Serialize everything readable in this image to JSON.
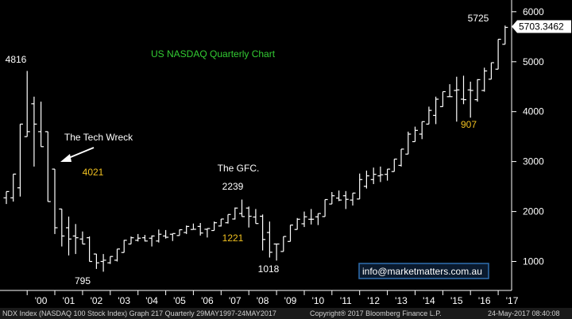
{
  "chart_data": {
    "type": "ohlc",
    "title": "US NASDAQ Quarterly Chart",
    "last_price_label": "5703.3462",
    "y_ticks": [
      1000,
      2000,
      3000,
      4000,
      5000,
      6000
    ],
    "ylim": [
      420,
      6220
    ],
    "x_tick_labels": [
      "'00",
      "'01",
      "'02",
      "'03",
      "'04",
      "'05",
      "'06",
      "'07",
      "'08",
      "'09",
      "'10",
      "'11",
      "'12",
      "'13",
      "'14",
      "'15",
      "'16",
      "'17"
    ],
    "bars": [
      {
        "q": "1999Q2",
        "h": 2400,
        "l": 2150
      },
      {
        "q": "1999Q3",
        "h": 2750,
        "l": 2200
      },
      {
        "q": "1999Q4",
        "h": 3750,
        "l": 2300
      },
      {
        "q": "2000Q1",
        "h": 4816,
        "l": 3500
      },
      {
        "q": "2000Q2",
        "h": 4300,
        "l": 2900
      },
      {
        "q": "2000Q3",
        "h": 4200,
        "l": 3300
      },
      {
        "q": "2000Q4",
        "h": 3600,
        "l": 2200
      },
      {
        "q": "2001Q1",
        "h": 2850,
        "l": 1550
      },
      {
        "q": "2001Q2",
        "h": 2050,
        "l": 1300
      },
      {
        "q": "2001Q3",
        "h": 1900,
        "l": 1120
      },
      {
        "q": "2001Q4",
        "h": 1750,
        "l": 1150
      },
      {
        "q": "2002Q1",
        "h": 1600,
        "l": 1350
      },
      {
        "q": "2002Q2",
        "h": 1500,
        "l": 1000
      },
      {
        "q": "2002Q3",
        "h": 1150,
        "l": 850
      },
      {
        "q": "2002Q4",
        "h": 1150,
        "l": 795
      },
      {
        "q": "2003Q1",
        "h": 1100,
        "l": 950
      },
      {
        "q": "2003Q2",
        "h": 1250,
        "l": 1000
      },
      {
        "q": "2003Q3",
        "h": 1430,
        "l": 1180
      },
      {
        "q": "2003Q4",
        "h": 1500,
        "l": 1350
      },
      {
        "q": "2004Q1",
        "h": 1550,
        "l": 1400
      },
      {
        "q": "2004Q2",
        "h": 1530,
        "l": 1400
      },
      {
        "q": "2004Q3",
        "h": 1520,
        "l": 1300
      },
      {
        "q": "2004Q4",
        "h": 1640,
        "l": 1380
      },
      {
        "q": "2005Q1",
        "h": 1630,
        "l": 1460
      },
      {
        "q": "2005Q2",
        "h": 1560,
        "l": 1410
      },
      {
        "q": "2005Q3",
        "h": 1640,
        "l": 1520
      },
      {
        "q": "2005Q4",
        "h": 1720,
        "l": 1550
      },
      {
        "q": "2006Q1",
        "h": 1760,
        "l": 1640
      },
      {
        "q": "2006Q2",
        "h": 1770,
        "l": 1520
      },
      {
        "q": "2006Q3",
        "h": 1660,
        "l": 1480
      },
      {
        "q": "2006Q4",
        "h": 1800,
        "l": 1620
      },
      {
        "q": "2007Q1",
        "h": 1850,
        "l": 1700
      },
      {
        "q": "2007Q2",
        "h": 1940,
        "l": 1760
      },
      {
        "q": "2007Q3",
        "h": 2080,
        "l": 1840
      },
      {
        "q": "2007Q4",
        "h": 2239,
        "l": 1900
      },
      {
        "q": "2008Q1",
        "h": 2100,
        "l": 1680
      },
      {
        "q": "2008Q2",
        "h": 2050,
        "l": 1760
      },
      {
        "q": "2008Q3",
        "h": 1940,
        "l": 1221
      },
      {
        "q": "2008Q4",
        "h": 1800,
        "l": 1080
      },
      {
        "q": "2009Q1",
        "h": 1350,
        "l": 1018
      },
      {
        "q": "2009Q2",
        "h": 1500,
        "l": 1200
      },
      {
        "q": "2009Q3",
        "h": 1730,
        "l": 1400
      },
      {
        "q": "2009Q4",
        "h": 1870,
        "l": 1640
      },
      {
        "q": "2010Q1",
        "h": 2000,
        "l": 1690
      },
      {
        "q": "2010Q2",
        "h": 2050,
        "l": 1740
      },
      {
        "q": "2010Q3",
        "h": 1960,
        "l": 1730
      },
      {
        "q": "2010Q4",
        "h": 2240,
        "l": 1900
      },
      {
        "q": "2011Q1",
        "h": 2390,
        "l": 2150
      },
      {
        "q": "2011Q2",
        "h": 2420,
        "l": 2210
      },
      {
        "q": "2011Q3",
        "h": 2410,
        "l": 2050
      },
      {
        "q": "2011Q4",
        "h": 2370,
        "l": 2120
      },
      {
        "q": "2012Q1",
        "h": 2760,
        "l": 2250
      },
      {
        "q": "2012Q2",
        "h": 2820,
        "l": 2460
      },
      {
        "q": "2012Q3",
        "h": 2880,
        "l": 2550
      },
      {
        "q": "2012Q4",
        "h": 2900,
        "l": 2590
      },
      {
        "q": "2013Q1",
        "h": 2850,
        "l": 2620
      },
      {
        "q": "2013Q2",
        "h": 3050,
        "l": 2800
      },
      {
        "q": "2013Q3",
        "h": 3250,
        "l": 2900
      },
      {
        "q": "2013Q4",
        "h": 3600,
        "l": 3150
      },
      {
        "q": "2014Q1",
        "h": 3700,
        "l": 3400
      },
      {
        "q": "2014Q2",
        "h": 3800,
        "l": 3450
      },
      {
        "q": "2014Q3",
        "h": 4100,
        "l": 3750
      },
      {
        "q": "2014Q4",
        "h": 4300,
        "l": 3750
      },
      {
        "q": "2015Q1",
        "h": 4400,
        "l": 4100
      },
      {
        "q": "2015Q2",
        "h": 4550,
        "l": 4300
      },
      {
        "q": "2015Q3",
        "h": 4700,
        "l": 3800
      },
      {
        "q": "2015Q4",
        "h": 4720,
        "l": 4150
      },
      {
        "q": "2016Q1",
        "h": 4600,
        "l": 3880
      },
      {
        "q": "2016Q2",
        "h": 4650,
        "l": 4200
      },
      {
        "q": "2016Q3",
        "h": 4880,
        "l": 4400
      },
      {
        "q": "2016Q4",
        "h": 4980,
        "l": 4650
      },
      {
        "q": "2017Q1",
        "h": 5450,
        "l": 4850
      },
      {
        "q": "2017Q2",
        "h": 5725,
        "l": 5350
      }
    ],
    "annotations": [
      {
        "text": "4816",
        "color": "#ffffff",
        "q": "2000Q1",
        "value": 4816
      },
      {
        "text": "The Tech Wreck",
        "color": "#ffffff"
      },
      {
        "text": "4021",
        "color": "#f0c020"
      },
      {
        "text": "795",
        "color": "#ffffff",
        "q": "2002Q4",
        "value": 795
      },
      {
        "text": "The GFC.",
        "color": "#ffffff"
      },
      {
        "text": "2239",
        "color": "#ffffff",
        "q": "2007Q4",
        "value": 2239
      },
      {
        "text": "1221",
        "color": "#f0c020"
      },
      {
        "text": "1018",
        "color": "#ffffff",
        "q": "2009Q1",
        "value": 1018
      },
      {
        "text": "907",
        "color": "#f0c020"
      },
      {
        "text": "5725",
        "color": "#ffffff",
        "q": "2017Q2",
        "value": 5725
      }
    ],
    "watermark": "info@marketmatters.com.au",
    "grid": false,
    "colors": {
      "background": "#000000",
      "bars": "#ffffff",
      "title": "#33cc33",
      "annotation_yellow": "#f0c020",
      "watermark_border": "#2f6fb0"
    }
  },
  "footer": {
    "left": "NDX Index (NASDAQ 100 Stock Index) Graph 217  Quarterly 29MAY1997-24MAY2017",
    "center": "Copyright® 2017 Bloomberg Finance L.P.",
    "right": "24-May-2017 08:40:08"
  }
}
